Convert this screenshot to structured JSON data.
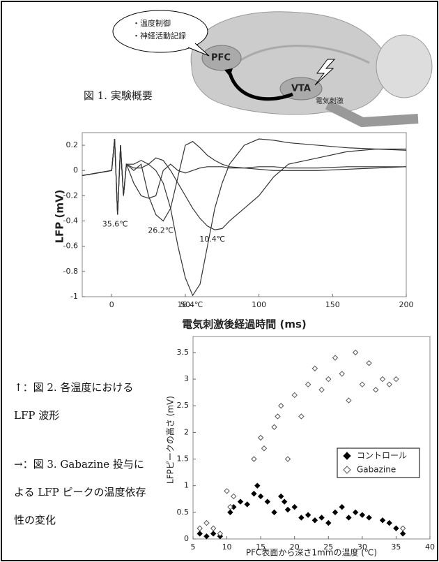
{
  "figure1": {
    "bubble_lines": [
      "・温度制御",
      "・神経活動記録"
    ],
    "region_a": "PFC",
    "region_b": "VTA",
    "stimulus": "電気刺激",
    "caption": "図 1. 実験概要"
  },
  "captions": {
    "figure2": "↑：図 2. 各温度における LFP 波形",
    "figure3": "→：図 3. Gabazine 投与による LFP ピークの温度依存性の変化"
  },
  "chart_data": [
    {
      "type": "line",
      "x_label": "電気刺激後経過時間 (ms)",
      "y_label": "LFP (mV)",
      "x": [
        -20,
        -10,
        0,
        2,
        4,
        6,
        8,
        10,
        15,
        20,
        25,
        30,
        35,
        40,
        45,
        50,
        55,
        60,
        65,
        70,
        75,
        80,
        90,
        100,
        110,
        120,
        140,
        160,
        180,
        200
      ],
      "series": [
        {
          "name": "35.6℃",
          "color": "#333333",
          "values": [
            -0.04,
            -0.02,
            0,
            0.25,
            -0.35,
            0.2,
            -0.2,
            0.05,
            -0.1,
            -0.2,
            -0.22,
            -0.2,
            0.0,
            0.05,
            0.0,
            -0.02,
            0,
            0.02,
            0.03,
            0.03,
            0.03,
            0.02,
            0.02,
            0.03,
            0.03,
            0.02,
            0.02,
            0.03,
            0.03,
            0.03
          ]
        },
        {
          "name": "26.2℃",
          "color": "#333333",
          "values": [
            -0.04,
            -0.02,
            0,
            0.25,
            -0.35,
            0.2,
            -0.2,
            0.05,
            0.0,
            0.05,
            -0.2,
            -0.35,
            -0.4,
            -0.3,
            -0.05,
            0.2,
            0.23,
            0.18,
            0.12,
            0.08,
            0.05,
            0.03,
            0.02,
            0.01,
            0.0,
            0.0,
            0.0,
            0.01,
            0.02,
            0.03
          ]
        },
        {
          "name": "16.4℃",
          "color": "#333333",
          "values": [
            -0.04,
            -0.02,
            0,
            0.25,
            -0.35,
            0.2,
            -0.2,
            0.05,
            0.05,
            0.08,
            0.05,
            0.0,
            -0.1,
            -0.3,
            -0.6,
            -0.85,
            -0.99,
            -0.9,
            -0.6,
            -0.3,
            -0.1,
            0.05,
            0.2,
            0.25,
            0.24,
            0.22,
            0.2,
            0.18,
            0.17,
            0.17
          ]
        },
        {
          "name": "10.4℃",
          "color": "#333333",
          "values": [
            -0.04,
            -0.02,
            0,
            0.25,
            -0.35,
            0.2,
            -0.2,
            0.05,
            0.02,
            0.02,
            0.05,
            0.1,
            0.08,
            0.0,
            -0.1,
            -0.2,
            -0.3,
            -0.38,
            -0.44,
            -0.47,
            -0.46,
            -0.4,
            -0.3,
            -0.2,
            -0.05,
            0.05,
            0.1,
            0.15,
            0.17,
            0.16
          ]
        }
      ],
      "xlim": [
        -20,
        200
      ],
      "xticks": [
        0,
        50,
        100,
        150,
        200
      ],
      "ylim": [
        -1,
        0.3
      ],
      "yticks": [
        -1,
        -0.8,
        -0.6,
        -0.4,
        -0.2,
        0,
        0.2
      ]
    },
    {
      "type": "scatter",
      "x_label": "PFC表面から深さ1mmの温度 (℃)",
      "y_label": "LFPピークの高さ (mV)",
      "legend": "lower right",
      "series": [
        {
          "name": "コントロール",
          "color": "#000000",
          "marker": "filled-diamond",
          "x": [
            6,
            7,
            8,
            9,
            10.5,
            11,
            12,
            13,
            14,
            14.5,
            15,
            16,
            17,
            18,
            18.5,
            19,
            20,
            21,
            22,
            23,
            24,
            25,
            26,
            27,
            28,
            29,
            30,
            31,
            33,
            34,
            35,
            36
          ],
          "values": [
            0.1,
            0.05,
            0.1,
            0.05,
            0.5,
            0.6,
            0.7,
            0.65,
            0.85,
            1.0,
            0.8,
            0.7,
            0.5,
            0.8,
            0.7,
            0.55,
            0.6,
            0.4,
            0.45,
            0.35,
            0.4,
            0.3,
            0.5,
            0.6,
            0.4,
            0.5,
            0.45,
            0.4,
            0.35,
            0.3,
            0.2,
            0.1
          ]
        },
        {
          "name": "Gabazine",
          "color": "#555555",
          "marker": "open-diamond",
          "x": [
            6,
            7,
            8,
            9,
            10,
            10.5,
            11,
            14,
            15,
            15.5,
            17,
            17.5,
            18,
            19,
            20,
            21,
            22,
            23,
            24,
            25,
            26,
            27,
            28,
            29,
            30,
            31,
            32,
            33,
            34,
            35,
            36
          ],
          "values": [
            0.2,
            0.3,
            0.2,
            0.1,
            0.9,
            0.6,
            0.8,
            1.5,
            1.9,
            1.7,
            2.1,
            2.3,
            2.5,
            1.5,
            2.7,
            2.3,
            2.9,
            3.2,
            2.8,
            3.0,
            3.4,
            3.1,
            2.6,
            3.5,
            2.9,
            3.3,
            2.8,
            3.0,
            2.9,
            3.0,
            0.2
          ]
        }
      ],
      "xlim": [
        5,
        40
      ],
      "xticks": [
        5,
        10,
        15,
        20,
        25,
        30,
        35,
        40
      ],
      "ylim": [
        0,
        3.8
      ],
      "yticks": [
        0,
        0.5,
        1,
        1.5,
        2,
        2.5,
        3,
        3.5
      ]
    }
  ]
}
